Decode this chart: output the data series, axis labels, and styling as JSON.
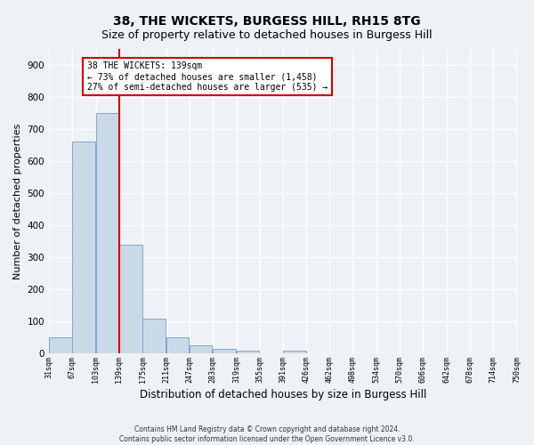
{
  "title1": "38, THE WICKETS, BURGESS HILL, RH15 8TG",
  "title2": "Size of property relative to detached houses in Burgess Hill",
  "xlabel": "Distribution of detached houses by size in Burgess Hill",
  "ylabel": "Number of detached properties",
  "bin_labels": [
    "31sqm",
    "67sqm",
    "103sqm",
    "139sqm",
    "175sqm",
    "211sqm",
    "247sqm",
    "283sqm",
    "319sqm",
    "355sqm",
    "391sqm",
    "426sqm",
    "462sqm",
    "498sqm",
    "534sqm",
    "570sqm",
    "606sqm",
    "642sqm",
    "678sqm",
    "714sqm",
    "750sqm"
  ],
  "bin_left_edges": [
    31,
    67,
    103,
    139,
    175,
    211,
    247,
    283,
    319,
    355,
    391,
    426,
    462,
    498,
    534,
    570,
    606,
    642,
    678,
    714
  ],
  "bar_heights": [
    50,
    660,
    750,
    340,
    110,
    50,
    25,
    15,
    10,
    0,
    10,
    0,
    0,
    0,
    0,
    0,
    0,
    0,
    0,
    0
  ],
  "bar_color": "#c9d9e8",
  "bar_edge_color": "#7fa8c9",
  "red_line_x": 139,
  "annotation_line1": "38 THE WICKETS: 139sqm",
  "annotation_line2": "← 73% of detached houses are smaller (1,458)",
  "annotation_line3": "27% of semi-detached houses are larger (535) →",
  "annotation_box_color": "#ffffff",
  "annotation_box_edge": "#cc0000",
  "ylim": [
    0,
    950
  ],
  "yticks": [
    0,
    100,
    200,
    300,
    400,
    500,
    600,
    700,
    800,
    900
  ],
  "footer1": "Contains HM Land Registry data © Crown copyright and database right 2024.",
  "footer2": "Contains public sector information licensed under the Open Government Licence v3.0.",
  "bg_color": "#eef2f7",
  "grid_color": "#ffffff",
  "title1_fontsize": 10,
  "title2_fontsize": 9
}
